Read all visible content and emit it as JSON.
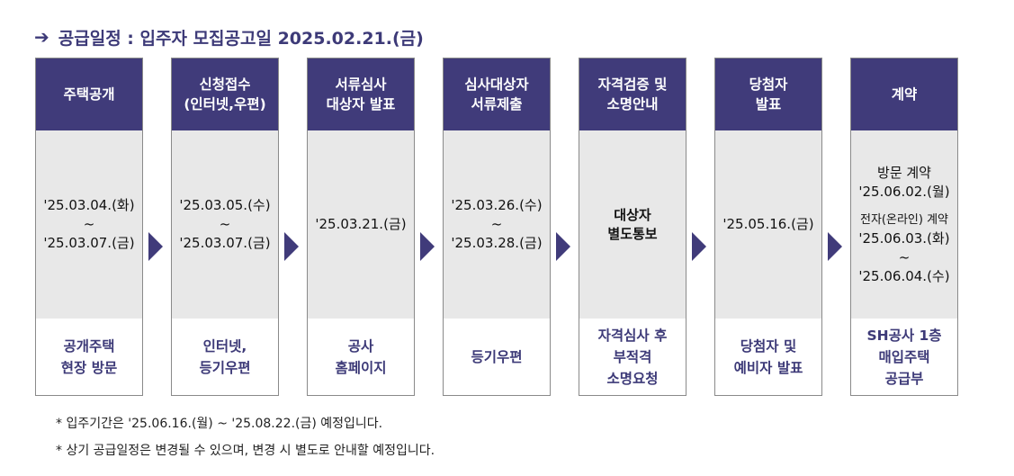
{
  "title": {
    "arrow": "➔",
    "text": "공급일정 : 입주자 모집공고일 2025.02.21.(금)"
  },
  "columns": [
    {
      "head": "주택공개",
      "mid": [
        {
          "t": "'25.03.04.(화)"
        },
        {
          "t": "~"
        },
        {
          "t": "'25.03.07.(금)"
        }
      ],
      "foot": "공개주택\n현장 방문"
    },
    {
      "head": "신청접수\n(인터넷,우편)",
      "mid": [
        {
          "t": "'25.03.05.(수)"
        },
        {
          "t": "~"
        },
        {
          "t": "'25.03.07.(금)"
        }
      ],
      "foot": "인터넷,\n등기우편"
    },
    {
      "head": "서류심사\n대상자 발표",
      "mid": [
        {
          "t": "'25.03.21.(금)"
        }
      ],
      "foot": "공사\n홈페이지"
    },
    {
      "head": "심사대상자\n서류제출",
      "mid": [
        {
          "t": "'25.03.26.(수)"
        },
        {
          "t": "~"
        },
        {
          "t": "'25.03.28.(금)"
        }
      ],
      "foot": "등기우편"
    },
    {
      "head": "자격검증 및\n소명안내",
      "mid": [
        {
          "t": "대상자",
          "b": true
        },
        {
          "t": "별도통보",
          "b": true
        }
      ],
      "foot": "자격심사 후\n부적격\n소명요청"
    },
    {
      "head": "당첨자\n발표",
      "mid": [
        {
          "t": "'25.05.16.(금)"
        }
      ],
      "foot": "당첨자 및\n예비자 발표"
    },
    {
      "head": "계약",
      "mid": [
        {
          "t": "방문 계약"
        },
        {
          "t": "'25.06.02.(월)"
        },
        {
          "gap": true
        },
        {
          "t": "전자(온라인) 계약",
          "s": true
        },
        {
          "t": "'25.06.03.(화)"
        },
        {
          "t": "~"
        },
        {
          "t": "'25.06.04.(수)"
        }
      ],
      "foot": "SH공사 1층\n매입주택\n공급부"
    }
  ],
  "notes": [
    "* 입주기간은 '25.06.16.(월) ~ '25.08.22.(금) 예정입니다.",
    "* 상기 공급일정은 변경될 수 있으며, 변경 시 별도로 안내할 예정입니다."
  ],
  "colors": {
    "header": "#403b7a",
    "middle": "#e8e8e8",
    "accent": "#3d3a78"
  }
}
